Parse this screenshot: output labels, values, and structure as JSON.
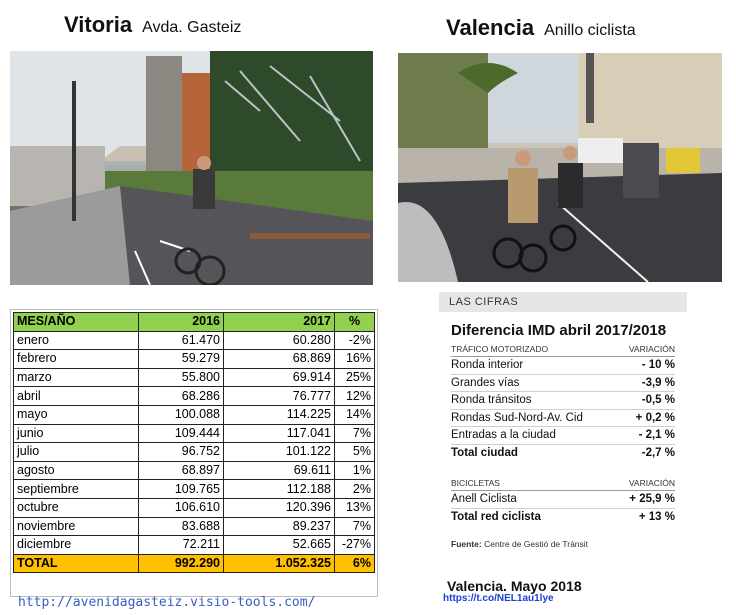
{
  "vitoria": {
    "city": "Vitoria",
    "street": "Avda. Gasteiz"
  },
  "valencia": {
    "city": "Valencia",
    "street": "Anillo ciclista"
  },
  "table": {
    "headers": [
      "MES/AÑO",
      "2016",
      "2017",
      "%"
    ],
    "rows": [
      [
        "enero",
        "61.470",
        "60.280",
        "-2%"
      ],
      [
        "febrero",
        "59.279",
        "68.869",
        "16%"
      ],
      [
        "marzo",
        "55.800",
        "69.914",
        "25%"
      ],
      [
        "abril",
        "68.286",
        "76.777",
        "12%"
      ],
      [
        "mayo",
        "100.088",
        "114.225",
        "14%"
      ],
      [
        "junio",
        "109.444",
        "117.041",
        "7%"
      ],
      [
        "julio",
        "96.752",
        "101.122",
        "5%"
      ],
      [
        "agosto",
        "68.897",
        "69.611",
        "1%"
      ],
      [
        "septiembre",
        "109.765",
        "112.188",
        "2%"
      ],
      [
        "octubre",
        "106.610",
        "120.396",
        "13%"
      ],
      [
        "noviembre",
        "83.688",
        "89.237",
        "7%"
      ],
      [
        "diciembre",
        "72.211",
        "52.665",
        "-27%"
      ]
    ],
    "total": [
      "TOTAL",
      "992.290",
      "1.052.325",
      "6%"
    ],
    "header_color": "#92d050",
    "total_color": "#ffc000"
  },
  "cifras": {
    "header": "LAS CIFRAS",
    "title": "Diferencia IMD abril 2017/2018",
    "motor": {
      "label": "TRÁFICO MOTORIZADO",
      "var_label": "VARIACIÓN",
      "rows": [
        [
          "Ronda interior",
          "- 10 %"
        ],
        [
          "Grandes vías",
          "-3,9 %"
        ],
        [
          "Ronda tránsitos",
          "-0,5 %"
        ],
        [
          "Rondas Sud-Nord-Av. Cid",
          "+ 0,2 %"
        ],
        [
          "Entradas a la ciudad",
          "- 2,1 %"
        ]
      ],
      "total": [
        "Total ciudad",
        "-2,7 %"
      ]
    },
    "bici": {
      "label": "BICICLETAS",
      "var_label": "VARIACIÓN",
      "rows": [
        [
          "Anell Ciclista",
          "+ 25,9 %"
        ]
      ],
      "total": [
        "Total red ciclista",
        "+ 13 %"
      ]
    },
    "source_label": "Fuente:",
    "source": "Centre de Gestió de Trànsit"
  },
  "valencia_date": "Valencia. Mayo 2018",
  "valencia_link": "https://t.co/NEL1au1lye",
  "vitoria_link": "http://avenidagasteiz.visio-tools.com/"
}
